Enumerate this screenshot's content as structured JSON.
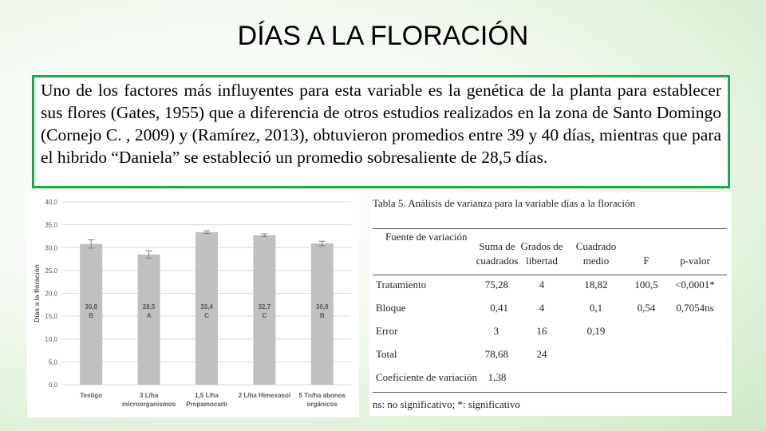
{
  "slide": {
    "title": "DÍAS A LA FLORACIÓN",
    "body": "Uno de los factores más influyentes para esta variable es la genética de la planta para establecer sus flores (Gates, 1955) que a diferencia de otros estudios realizados en la zona de Santo Domingo (Cornejo C. , 2009) y (Ramírez, 2013), obtuvieron promedios entre 39 y 40 días, mientras que para el hibrido “Daniela” se estableció un promedio sobresaliente de 28,5 días."
  },
  "colors": {
    "border": "#1fa84a",
    "bar": "#c0c0c0",
    "grid": "#d9d9d9",
    "text": "#595959"
  },
  "chart_data": {
    "type": "bar",
    "ylabel": "Días a la floración",
    "ylim": [
      0,
      40
    ],
    "yticks": [
      "0,0",
      "5,0",
      "10,0",
      "15,0",
      "20,0",
      "25,0",
      "30,0",
      "35,0",
      "40,0"
    ],
    "categories": [
      [
        "Testigo"
      ],
      [
        "3 L/ha",
        "microorganismos"
      ],
      [
        "1,5 L/ha",
        "Propamocarb"
      ],
      [
        "2 L/ha  Himexasol"
      ],
      [
        "5 Tn/ha abonos",
        "orgánicos"
      ]
    ],
    "values": [
      30.8,
      28.5,
      33.4,
      32.7,
      30.9
    ],
    "errors": [
      0.9,
      0.8,
      0.3,
      0.3,
      0.5
    ],
    "value_labels": [
      "30,8",
      "28,5",
      "33,4",
      "32,7",
      "30,9"
    ],
    "group_labels": [
      "B",
      "A",
      "C",
      "C",
      "B"
    ],
    "grid": true
  },
  "table": {
    "caption": "Tabla 5. Análisis de varianza para la variable días a la floración",
    "headers": {
      "source": "Fuente de variación",
      "sum_squares": [
        "Suma de",
        "cuadrados"
      ],
      "df": [
        "Grados de",
        "libertad"
      ],
      "mean_square": [
        "Cuadrado",
        "medio"
      ],
      "f": "F",
      "p": "p-valor"
    },
    "rows": [
      {
        "source": "Tratamiento",
        "sc": "75,28",
        "gl": "4",
        "cm": "18,82",
        "f": "100,5",
        "p": "<0,0001*"
      },
      {
        "source": "Bloque",
        "sc": "0,41",
        "gl": "4",
        "cm": "0,1",
        "f": "0,54",
        "p": "0,7054ns"
      },
      {
        "source": "Error",
        "sc": "3",
        "gl": "16",
        "cm": "0,19",
        "f": "",
        "p": ""
      },
      {
        "source": "Total",
        "sc": "78,68",
        "gl": "24",
        "cm": "",
        "f": "",
        "p": ""
      }
    ],
    "cv_label": "Coeficiente de variación",
    "cv_value": "1,38",
    "footnote": "ns: no significativo; *: significativo"
  }
}
